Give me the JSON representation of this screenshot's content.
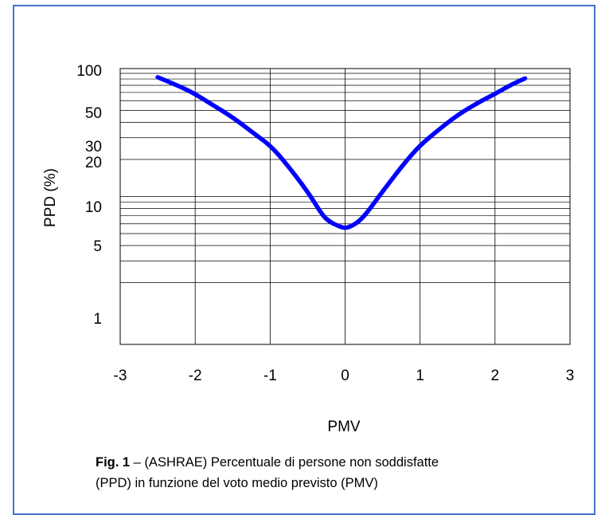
{
  "caption": {
    "fig_label": "Fig. 1",
    "line1": " – (ASHRAE) Percentuale di persone non soddisfatte",
    "line2": "(PPD) in funzione del voto medio previsto (PMV)"
  },
  "chart_data": {
    "type": "line",
    "title": "",
    "xlabel": "PMV",
    "ylabel": "PPD (%)",
    "xlim": [
      -3,
      3
    ],
    "ylim": [
      1,
      100
    ],
    "y_scale": "log",
    "grid": true,
    "legend": "none",
    "x_ticks": [
      -3,
      -2,
      -1,
      0,
      1,
      2,
      3
    ],
    "x_tick_labels": [
      "-3",
      "-2",
      "-1",
      "0",
      "1",
      "2",
      "3"
    ],
    "y_tick_labels": [
      {
        "value": 100,
        "label": "100"
      },
      {
        "value": 50,
        "label": "50"
      },
      {
        "value": 30,
        "label": "30"
      },
      {
        "value": 20,
        "label": "20"
      },
      {
        "value": 10,
        "label": "10"
      },
      {
        "value": 5,
        "label": "5"
      },
      {
        "value": 1,
        "label": "1"
      }
    ],
    "series": [
      {
        "color": "#0000ff",
        "x": [
          -2.5,
          -2.2,
          -2.0,
          -1.8,
          -1.5,
          -1.2,
          -1.0,
          -0.8,
          -0.5,
          -0.3,
          -0.2,
          -0.1,
          0.0,
          0.1,
          0.2,
          0.3,
          0.5,
          0.8,
          1.0,
          1.2,
          1.5,
          1.8,
          2.0,
          2.2,
          2.4
        ],
        "y": [
          93,
          78,
          68,
          57,
          44,
          32,
          26,
          19,
          11,
          7.0,
          6.2,
          5.8,
          5.5,
          5.8,
          6.4,
          7.5,
          11,
          19,
          26,
          33,
          46,
          59,
          68,
          80,
          91
        ]
      }
    ]
  }
}
